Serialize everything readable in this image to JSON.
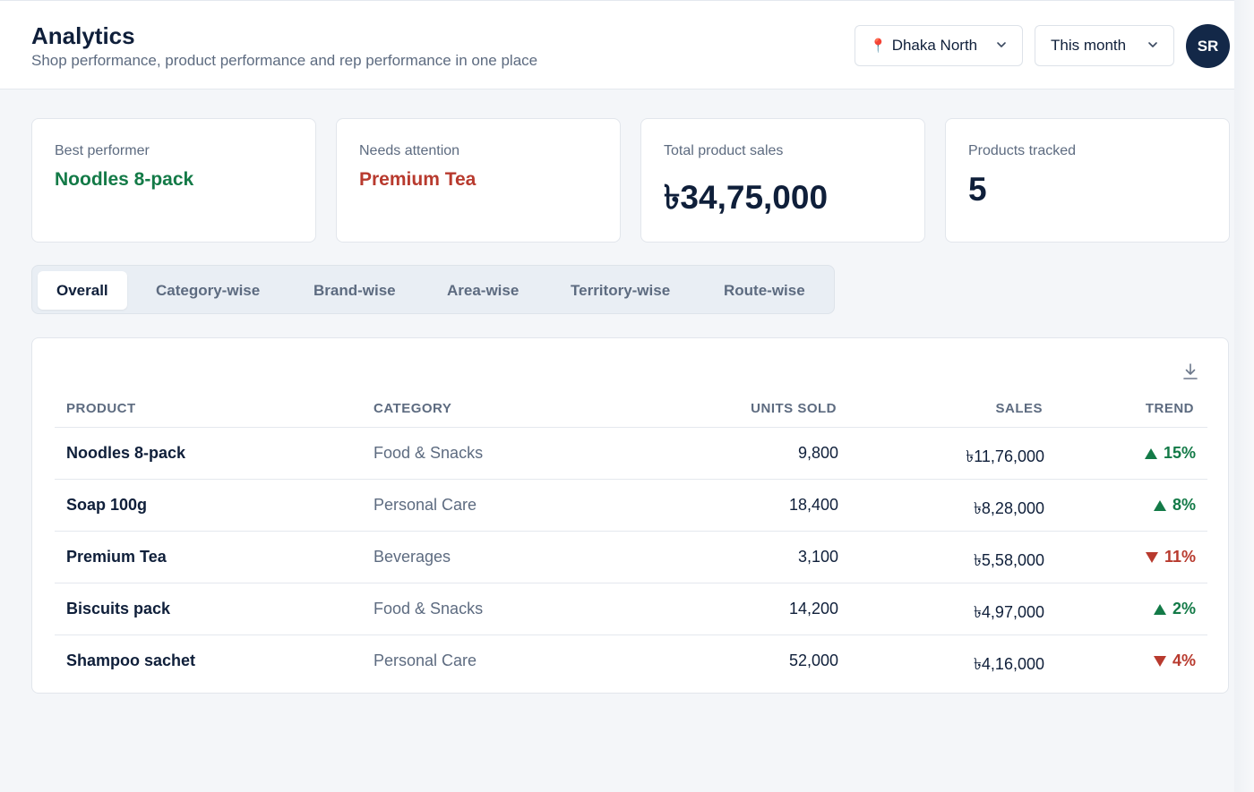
{
  "header": {
    "title": "Analytics",
    "subtitle": "Shop performance, product performance and rep performance in one place",
    "area_select": "Dhaka North",
    "period_select": "This month",
    "avatar_initials": "SR"
  },
  "cards": [
    {
      "label": "Best performer",
      "value": "Noodles 8-pack"
    },
    {
      "label": "Needs attention",
      "value": "Premium Tea"
    },
    {
      "label": "Total product sales",
      "value": "৳34,75,000"
    },
    {
      "label": "Products tracked",
      "value": "5"
    }
  ],
  "tabs": [
    "Overall",
    "Category-wise",
    "Brand-wise",
    "Area-wise",
    "Territory-wise",
    "Route-wise"
  ],
  "active_tab": "Overall",
  "table": {
    "columns": [
      "PRODUCT",
      "CATEGORY",
      "UNITS SOLD",
      "SALES",
      "TREND"
    ],
    "rows": [
      {
        "product": "Noodles 8-pack",
        "category": "Food & Snacks",
        "units": "9,800",
        "sales": "৳11,76,000",
        "trend": "15%",
        "direction": "up"
      },
      {
        "product": "Soap 100g",
        "category": "Personal Care",
        "units": "18,400",
        "sales": "৳8,28,000",
        "trend": "8%",
        "direction": "up"
      },
      {
        "product": "Premium Tea",
        "category": "Beverages",
        "units": "3,100",
        "sales": "৳5,58,000",
        "trend": "11%",
        "direction": "down"
      },
      {
        "product": "Biscuits pack",
        "category": "Food & Snacks",
        "units": "14,200",
        "sales": "৳4,97,000",
        "trend": "2%",
        "direction": "up"
      },
      {
        "product": "Shampoo sachet",
        "category": "Personal Care",
        "units": "52,000",
        "sales": "৳4,16,000",
        "trend": "4%",
        "direction": "down"
      }
    ]
  },
  "colors": {
    "positive": "#137a47",
    "negative": "#b83a2e",
    "navy": "#132848"
  },
  "icons": {
    "area": "map-pin-icon",
    "dropdown": "chevron-down-icon",
    "download": "download-icon",
    "trend_up": "triangle-up-icon",
    "trend_down": "triangle-down-icon"
  }
}
